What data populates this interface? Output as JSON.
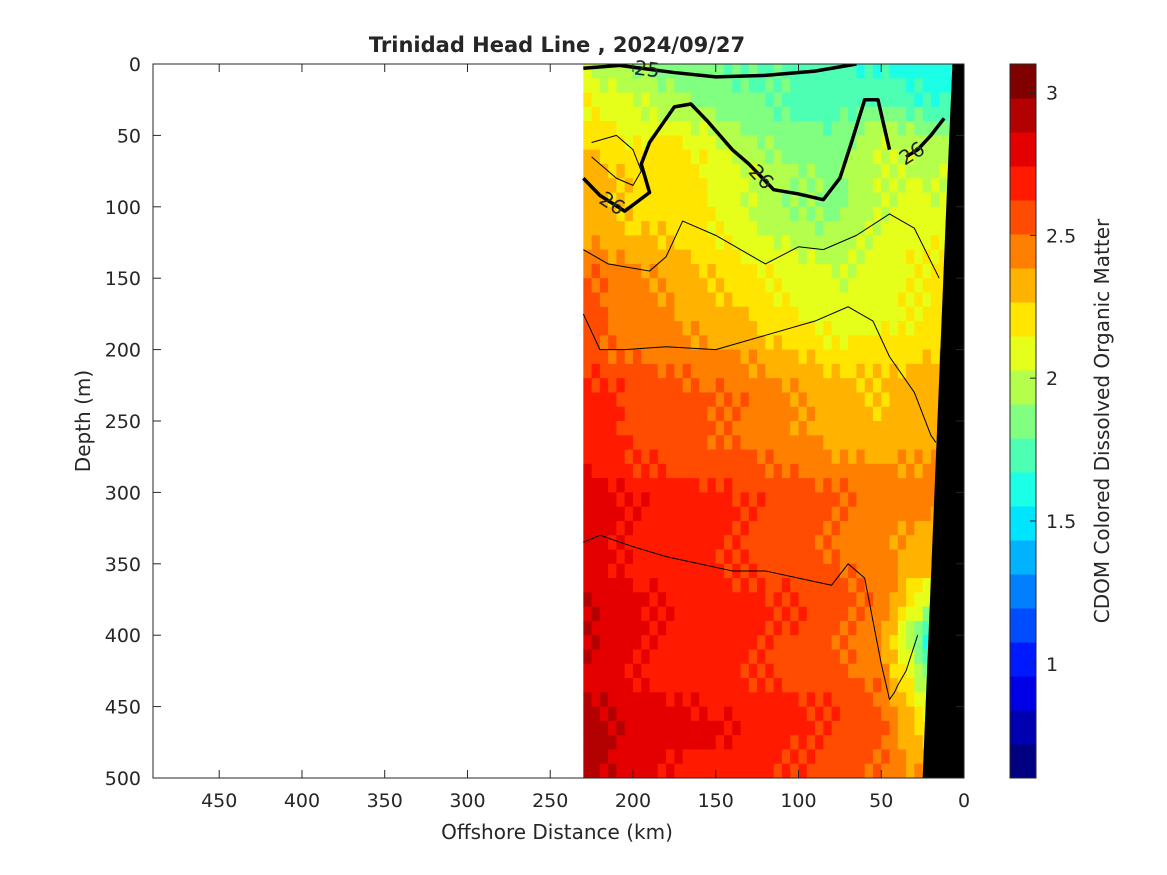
{
  "chart_data": {
    "type": "heatmap",
    "title": "Trinidad Head Line , 2024/09/27",
    "xlabel": "Offshore Distance (km)",
    "ylabel": "Depth (m)",
    "colorbar_label": "CDOM Colored Dissolved Organic Matter",
    "xlim": [
      490,
      0
    ],
    "ylim": [
      500,
      0
    ],
    "x_reversed": true,
    "y_reversed": true,
    "x_ticks": [
      "450",
      "400",
      "350",
      "300",
      "250",
      "200",
      "150",
      "100",
      "50",
      "0"
    ],
    "x_tick_values": [
      450,
      400,
      350,
      300,
      250,
      200,
      150,
      100,
      50,
      0
    ],
    "y_ticks": [
      "0",
      "50",
      "100",
      "150",
      "200",
      "250",
      "300",
      "350",
      "400",
      "450",
      "500"
    ],
    "y_tick_values": [
      0,
      50,
      100,
      150,
      200,
      250,
      300,
      350,
      400,
      450,
      500
    ],
    "colorbar_ticks": [
      "1",
      "1.5",
      "2",
      "2.5",
      "3"
    ],
    "colorbar_tick_values": [
      1,
      1.5,
      2,
      2.5,
      3
    ],
    "color_range": [
      0.6,
      3.1
    ],
    "colormap": "jet",
    "data_extent_km": [
      230,
      0
    ],
    "distance_km": [
      230,
      200,
      170,
      140,
      110,
      80,
      50,
      20
    ],
    "depth_m": [
      0,
      25,
      50,
      100,
      150,
      200,
      250,
      300,
      350,
      400,
      450,
      500
    ],
    "cdom": [
      [
        1.95,
        1.85,
        1.8,
        1.75,
        1.75,
        1.7,
        1.65,
        1.6
      ],
      [
        2.15,
        2.05,
        1.95,
        1.85,
        1.8,
        1.75,
        1.8,
        1.7
      ],
      [
        2.25,
        2.15,
        2.15,
        1.95,
        1.85,
        1.8,
        2.0,
        1.9
      ],
      [
        2.35,
        2.25,
        2.25,
        2.1,
        1.95,
        1.9,
        2.05,
        2.1
      ],
      [
        2.5,
        2.4,
        2.3,
        2.2,
        2.1,
        2.0,
        2.05,
        2.15
      ],
      [
        2.6,
        2.5,
        2.45,
        2.4,
        2.3,
        2.2,
        2.2,
        2.25
      ],
      [
        2.7,
        2.6,
        2.55,
        2.5,
        2.45,
        2.35,
        2.3,
        2.35
      ],
      [
        2.8,
        2.7,
        2.65,
        2.6,
        2.55,
        2.5,
        2.45,
        2.4
      ],
      [
        2.85,
        2.75,
        2.7,
        2.65,
        2.6,
        2.55,
        2.45,
        2.35
      ],
      [
        2.85,
        2.75,
        2.7,
        2.65,
        2.6,
        2.55,
        2.45,
        1.6
      ],
      [
        2.9,
        2.8,
        2.75,
        2.7,
        2.65,
        2.6,
        2.5,
        2.0
      ],
      [
        2.95,
        2.8,
        2.75,
        2.7,
        2.65,
        2.6,
        2.55,
        2.4
      ]
    ],
    "bathymetry": {
      "label": "seafloor",
      "color": "#000000",
      "distance_km": [
        0,
        0,
        25,
        10,
        7
      ],
      "depth_m": [
        0,
        500,
        500,
        80,
        0
      ]
    },
    "density_contours": [
      {
        "label": "25",
        "weight": "bold",
        "distance_km": [
          230,
          208,
          175,
          150,
          120,
          90,
          65
        ],
        "depth_m": [
          3,
          1,
          6,
          9,
          8,
          5,
          0
        ]
      },
      {
        "label": "26",
        "weight": "bold",
        "distance_km": [
          230,
          220,
          205,
          190,
          195,
          190,
          175,
          165,
          155,
          140,
          130,
          115,
          100,
          85,
          75,
          68,
          60,
          52,
          45
        ],
        "depth_m": [
          80,
          92,
          103,
          90,
          70,
          55,
          30,
          28,
          40,
          60,
          70,
          88,
          91,
          95,
          80,
          55,
          25,
          25,
          60
        ]
      },
      {
        "label": "26",
        "weight": "bold",
        "distance_km": [
          35,
          28,
          20,
          12
        ],
        "depth_m": [
          65,
          60,
          50,
          38
        ]
      },
      {
        "label": "",
        "weight": "thin",
        "distance_km": [
          230,
          215,
          190,
          180,
          170,
          150,
          120,
          100,
          85,
          65,
          45,
          30,
          15
        ],
        "depth_m": [
          130,
          140,
          145,
          135,
          110,
          120,
          140,
          128,
          130,
          120,
          105,
          115,
          150
        ]
      },
      {
        "label": "",
        "weight": "thin",
        "distance_km": [
          230,
          220,
          205,
          180,
          150,
          120,
          90,
          70,
          55,
          45,
          30,
          20,
          17
        ],
        "depth_m": [
          175,
          200,
          200,
          198,
          200,
          190,
          180,
          170,
          180,
          205,
          230,
          260,
          265
        ]
      },
      {
        "label": "",
        "weight": "thin",
        "distance_km": [
          230,
          220,
          200,
          180,
          160,
          140,
          120,
          100,
          80,
          70,
          60,
          55,
          50,
          45,
          42,
          40,
          35,
          28
        ],
        "depth_m": [
          335,
          330,
          338,
          345,
          350,
          355,
          355,
          360,
          365,
          350,
          360,
          390,
          420,
          445,
          440,
          435,
          425,
          400
        ]
      },
      {
        "label": "",
        "weight": "thin",
        "distance_km": [
          225,
          210,
          200,
          195,
          200,
          210,
          225
        ],
        "depth_m": [
          55,
          50,
          60,
          75,
          85,
          80,
          65
        ]
      }
    ]
  }
}
